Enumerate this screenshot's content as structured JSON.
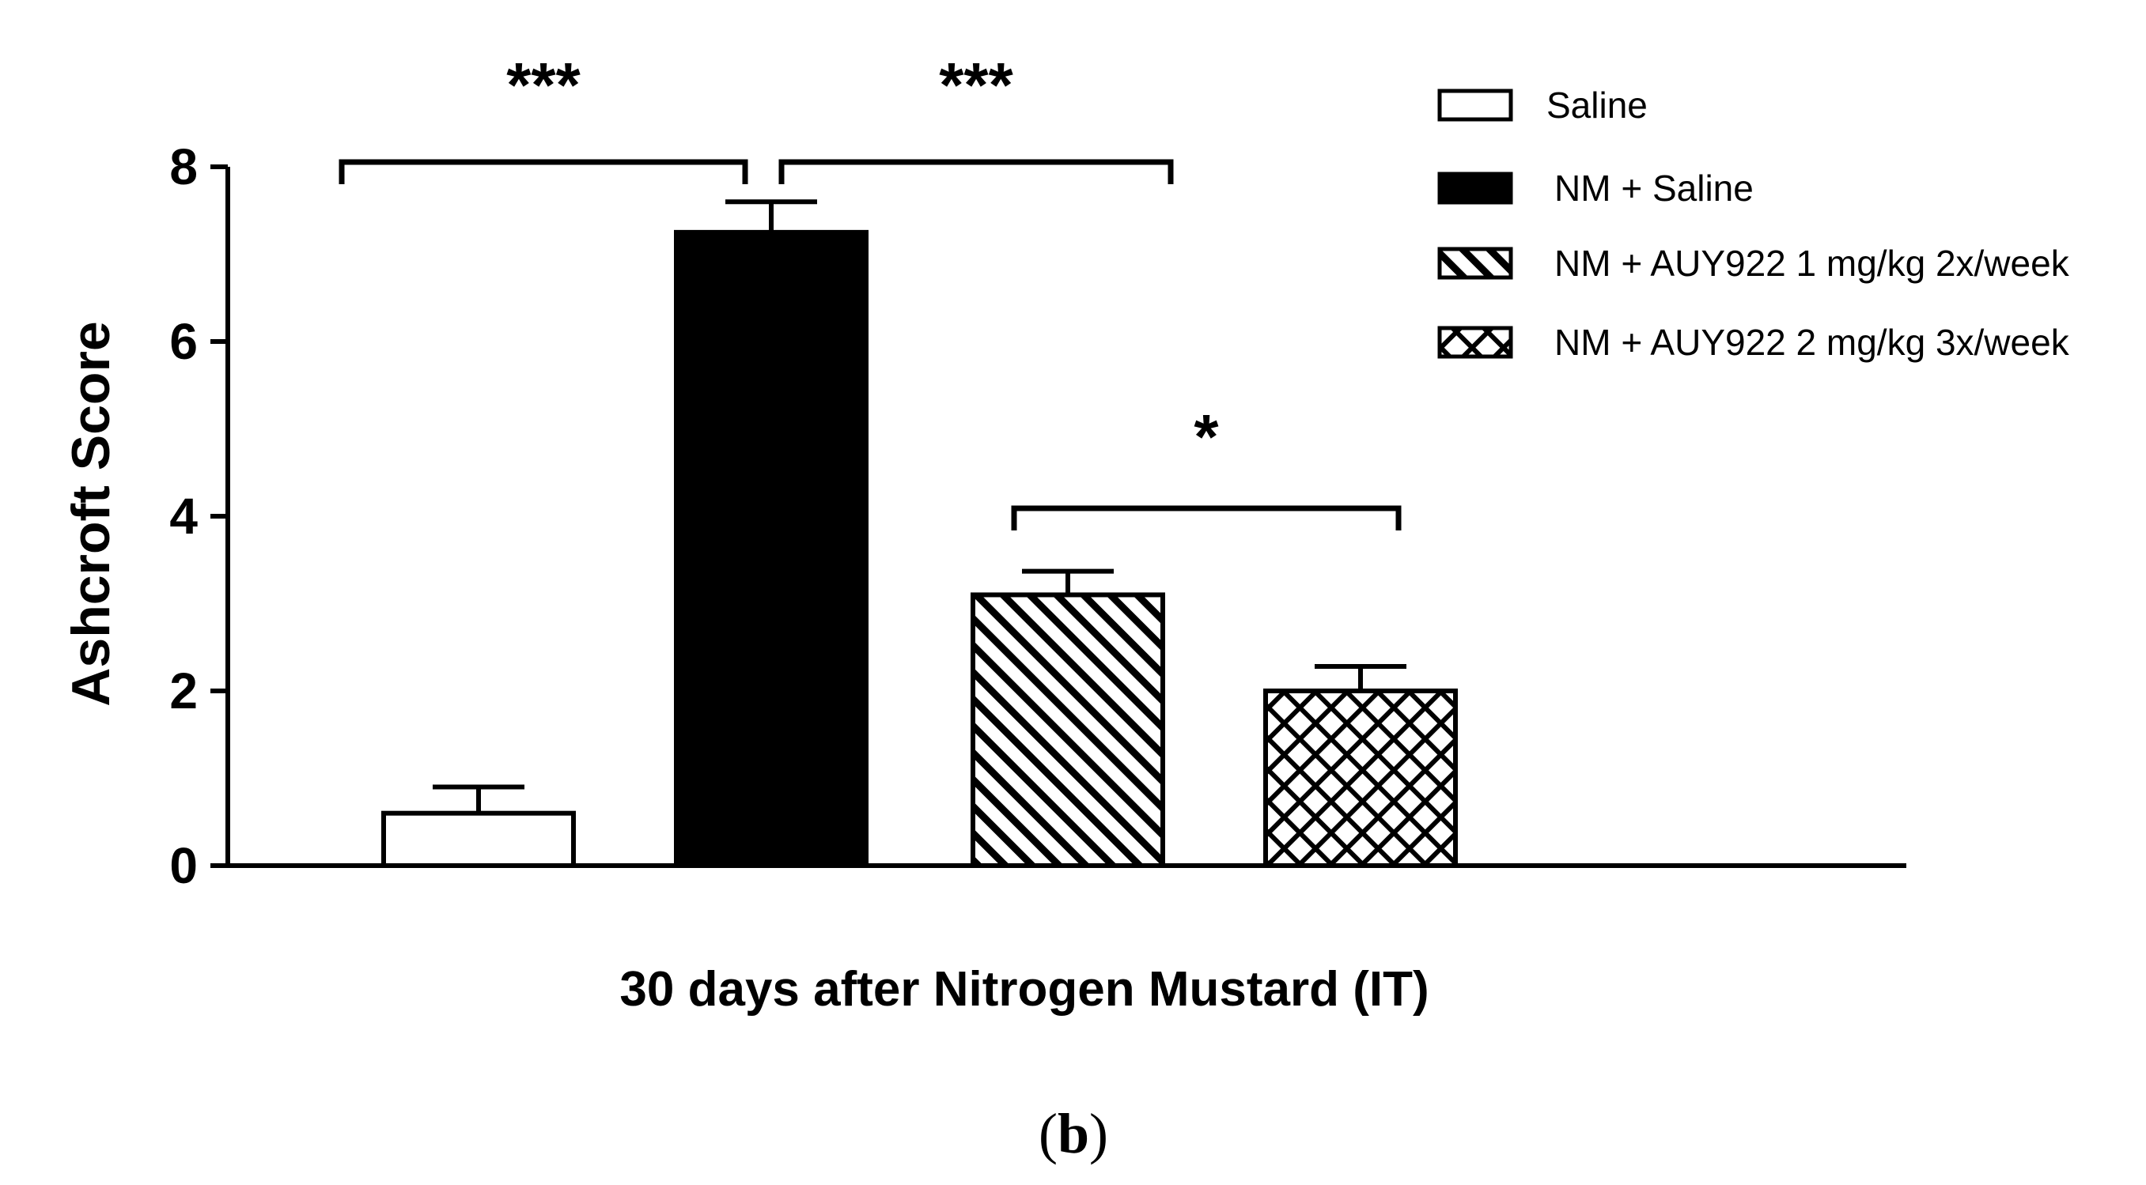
{
  "chart_data": {
    "type": "bar",
    "xlabel": "30 days after Nitrogen Mustard  (IT)",
    "ylabel": "Ashcroft Score",
    "ylim": [
      0,
      8
    ],
    "yticks": [
      "0",
      "2",
      "4",
      "6",
      "8"
    ],
    "categories": [
      "Saline",
      "NM + Saline",
      "NM + AUY922 1 mg/kg 2x/week",
      "NM + AUY922 2 mg/kg 3x/week"
    ],
    "values": [
      0.6,
      7.25,
      3.1,
      2.0
    ],
    "errors": [
      0.3,
      0.35,
      0.27,
      0.28
    ],
    "fills": [
      "white",
      "black",
      "diagonal-hatch",
      "cross-hatch"
    ],
    "legend_position": "top-right",
    "significance": [
      {
        "from": 0,
        "to": 1,
        "label": "***"
      },
      {
        "from": 1,
        "to": 2,
        "label": "***"
      },
      {
        "from": 2,
        "to": 3,
        "label": "*"
      }
    ]
  },
  "panel_label": {
    "open": "(",
    "letter": "b",
    "close": ")"
  }
}
